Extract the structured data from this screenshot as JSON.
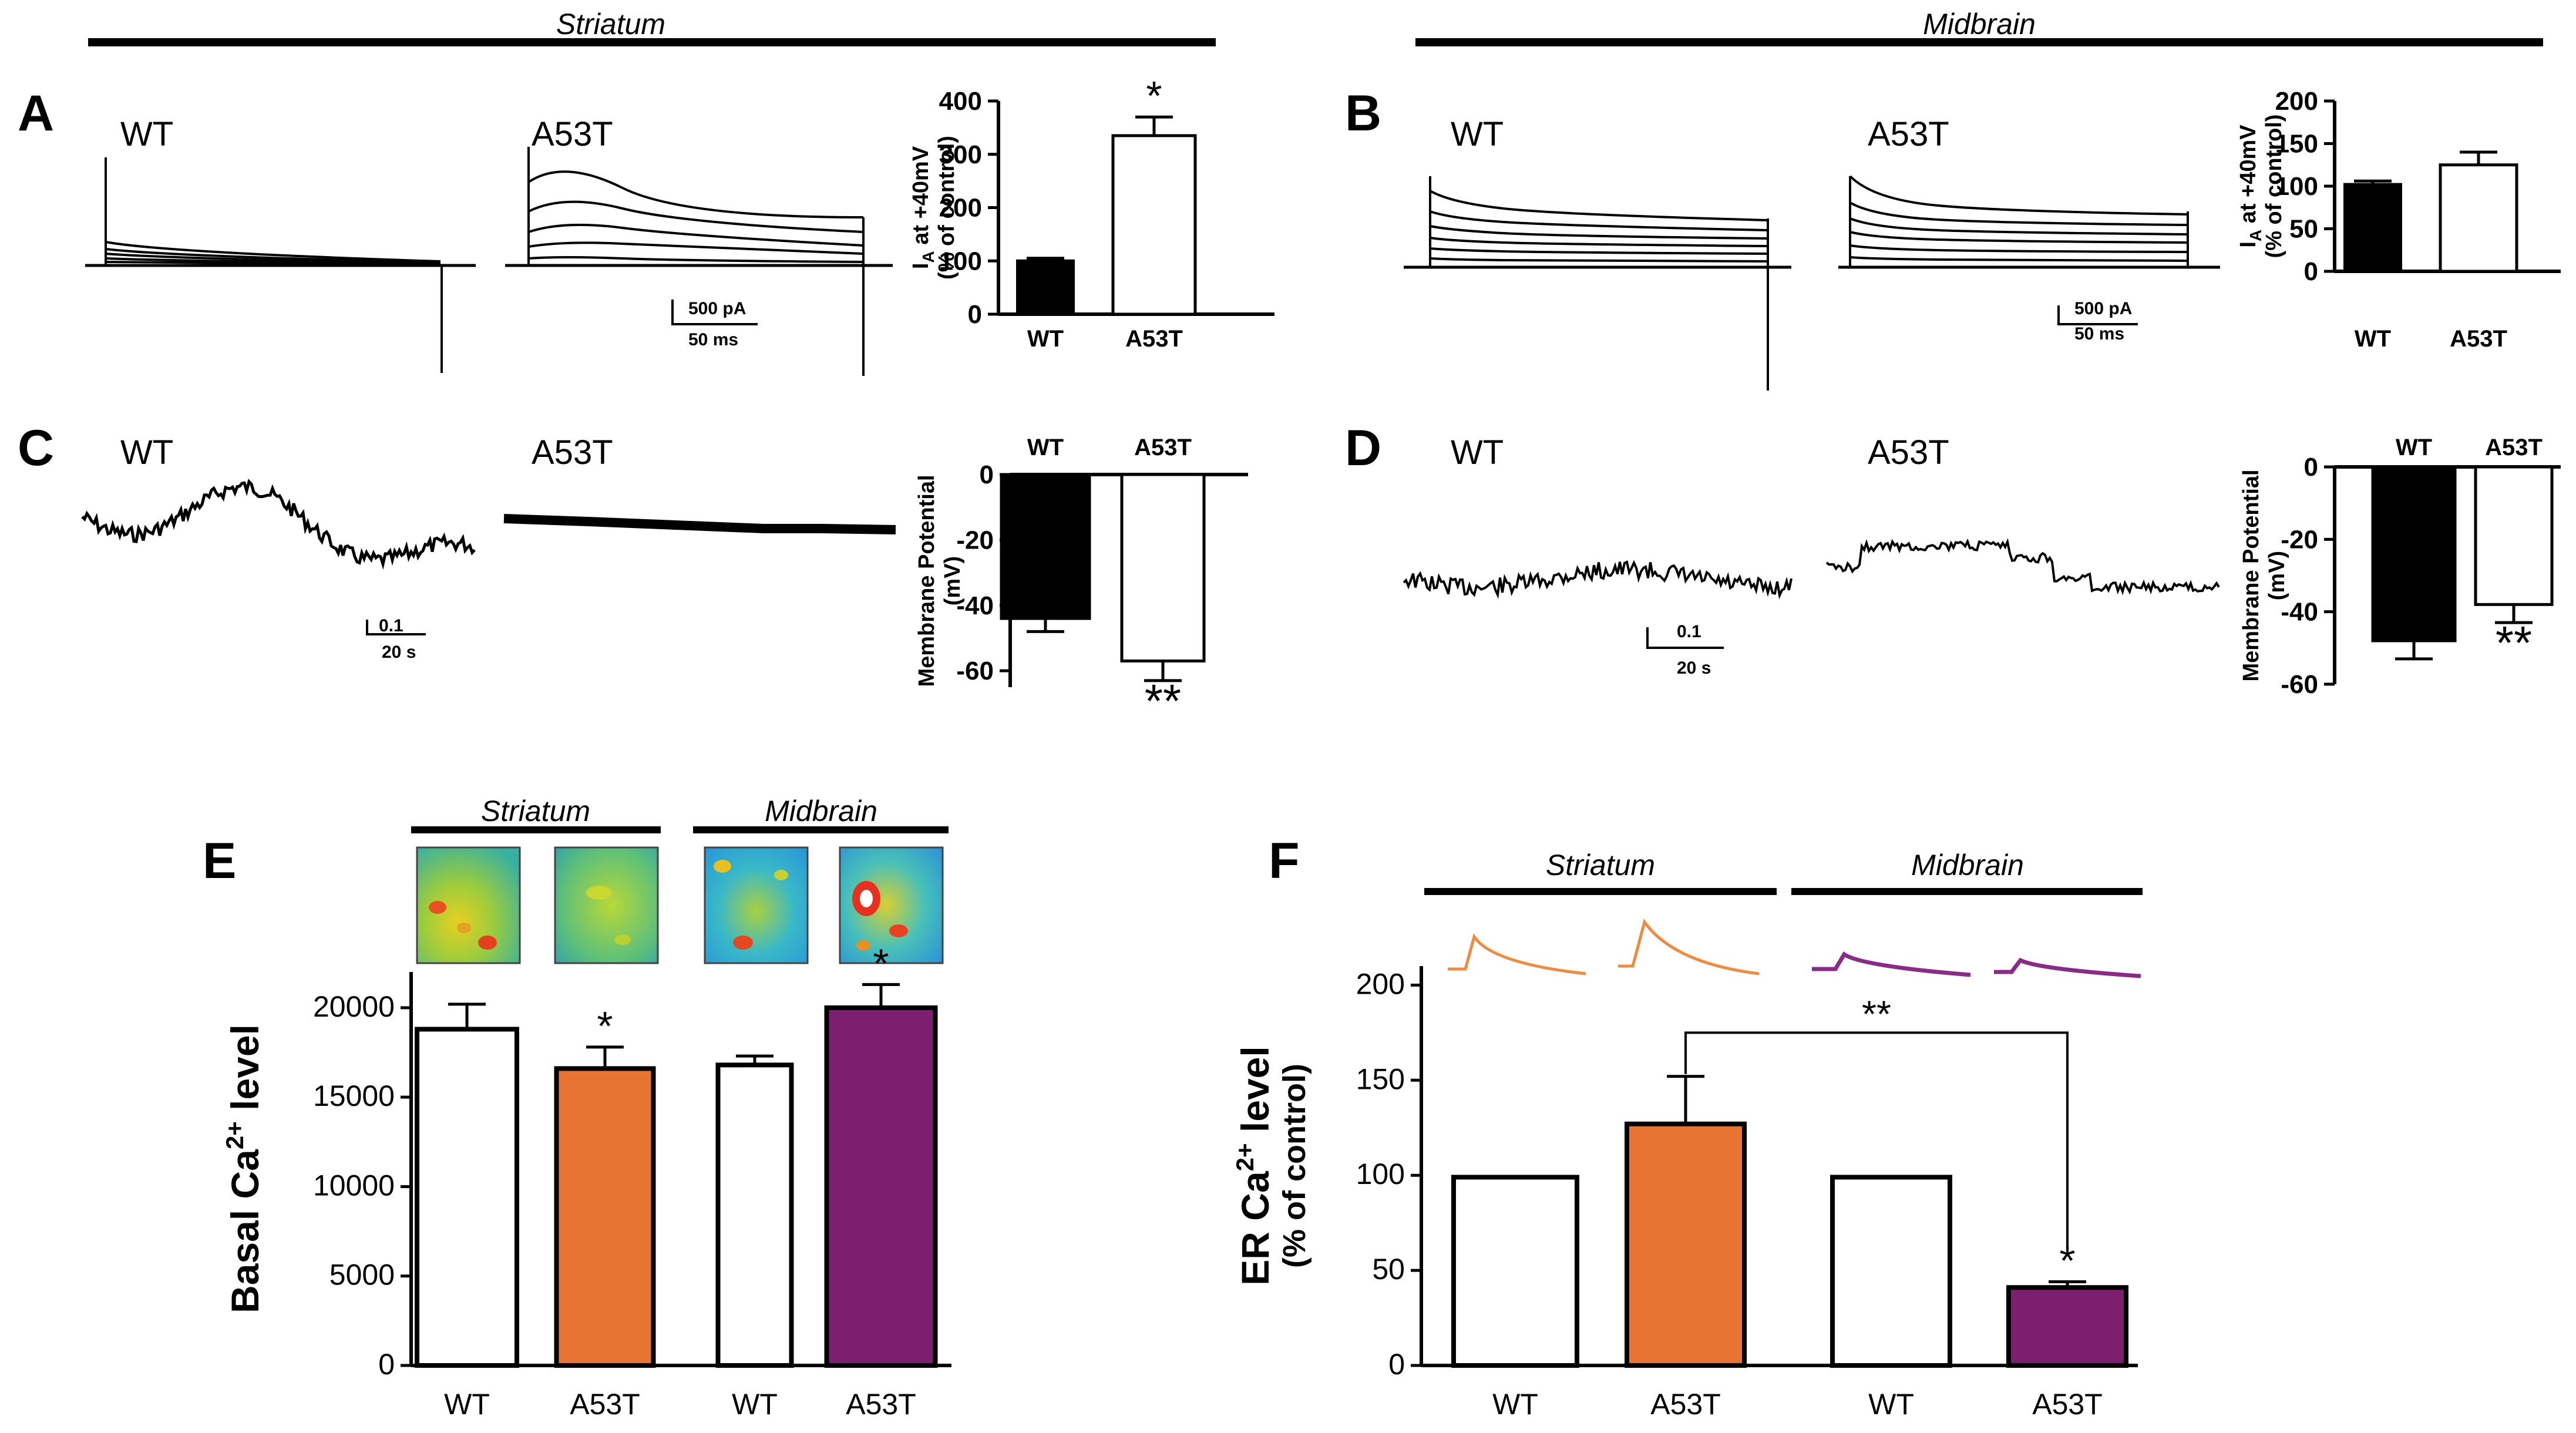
{
  "figure": {
    "regions": {
      "left": "Striatum",
      "right": "Midbrain"
    },
    "panels": {
      "A": {
        "letter": "A",
        "trace_labels": [
          "WT",
          "A53T"
        ],
        "scale_bar": {
          "y_label": "500 pA",
          "x_label": "50 ms"
        }
      },
      "B": {
        "letter": "B",
        "trace_labels": [
          "WT",
          "A53T"
        ],
        "scale_bar": {
          "y_label": "500 pA",
          "x_label": "50 ms"
        }
      },
      "C": {
        "letter": "C",
        "trace_labels": [
          "WT",
          "A53T"
        ],
        "scale_bar": {
          "y_label": "0.1",
          "x_label": "20 s"
        }
      },
      "D": {
        "letter": "D",
        "trace_labels": [
          "WT",
          "A53T"
        ],
        "scale_bar": {
          "y_label": "0.1",
          "x_label": "20 s"
        }
      },
      "E": {
        "letter": "E",
        "image_groups": [
          "Striatum",
          "Midbrain"
        ]
      },
      "F": {
        "letter": "F",
        "trace_groups": [
          "Striatum",
          "Midbrain"
        ]
      }
    }
  },
  "colors": {
    "black": "#000000",
    "white": "#ffffff",
    "orange": "#e87434",
    "purple": "#7b1f6e",
    "trace_orange": "#f08a3c",
    "trace_purple": "#8b2a87"
  },
  "chart_data": [
    {
      "id": "A",
      "type": "bar",
      "categories": [
        "WT",
        "A53T"
      ],
      "values": [
        100,
        335
      ],
      "errors": [
        5,
        35
      ],
      "fills": [
        "black",
        "white"
      ],
      "ylabel_main": "IA at +40mV",
      "ylabel_sub": "(% of control)",
      "ylim": [
        0,
        400
      ],
      "yticks": [
        0,
        100,
        200,
        300,
        400
      ],
      "significance": [
        "",
        "*"
      ]
    },
    {
      "id": "B",
      "type": "bar",
      "categories": [
        "WT",
        "A53T"
      ],
      "values": [
        102,
        125
      ],
      "errors": [
        4,
        15
      ],
      "fills": [
        "black",
        "white"
      ],
      "ylabel_main": "IA at +40mV",
      "ylabel_sub": "(% of control)",
      "ylim": [
        0,
        200
      ],
      "yticks": [
        0,
        50,
        100,
        150,
        200
      ],
      "significance": [
        "",
        ""
      ]
    },
    {
      "id": "C",
      "type": "bar",
      "categories": [
        "WT",
        "A53T"
      ],
      "values": [
        -44,
        -57
      ],
      "errors": [
        4,
        6
      ],
      "fills": [
        "black",
        "white"
      ],
      "ylabel_main": "Membrane Potential",
      "ylabel_sub": "(mV)",
      "ylim": [
        -65,
        0
      ],
      "yticks": [
        0,
        -20,
        -40,
        -60
      ],
      "significance": [
        "",
        "**"
      ]
    },
    {
      "id": "D",
      "type": "bar",
      "categories": [
        "WT",
        "A53T"
      ],
      "values": [
        -48,
        -38
      ],
      "errors": [
        5,
        5
      ],
      "fills": [
        "black",
        "white"
      ],
      "ylabel_main": "Membrane Potential",
      "ylabel_sub": "(mV)",
      "ylim": [
        -60,
        0
      ],
      "yticks": [
        0,
        -20,
        -40,
        -60
      ],
      "significance": [
        "",
        "**"
      ]
    },
    {
      "id": "E",
      "type": "bar",
      "categories": [
        "WT",
        "A53T",
        "WT",
        "A53T"
      ],
      "values": [
        18800,
        16600,
        16800,
        20000
      ],
      "errors": [
        1400,
        1200,
        500,
        1300
      ],
      "fills": [
        "white",
        "orange",
        "white",
        "purple"
      ],
      "ylabel": "Basal Ca2+ level",
      "ylim": [
        0,
        22000
      ],
      "yticks": [
        0,
        5000,
        10000,
        15000,
        20000
      ],
      "significance": [
        "",
        "*",
        "",
        "*"
      ]
    },
    {
      "id": "F",
      "type": "bar",
      "categories": [
        "WT",
        "A53T",
        "WT",
        "A53T"
      ],
      "values": [
        99,
        127,
        99,
        41
      ],
      "errors": [
        0,
        25,
        0,
        3
      ],
      "fills": [
        "white",
        "orange",
        "white",
        "purple"
      ],
      "ylabel_main": "ER Ca2+ level",
      "ylabel_sub": "(% of control)",
      "ylim": [
        0,
        210
      ],
      "yticks": [
        0,
        50,
        100,
        150,
        200
      ],
      "significance": [
        "",
        "",
        "",
        "*"
      ],
      "bracket": {
        "from_bar": 1,
        "to_bar": 3,
        "label": "**"
      }
    }
  ]
}
